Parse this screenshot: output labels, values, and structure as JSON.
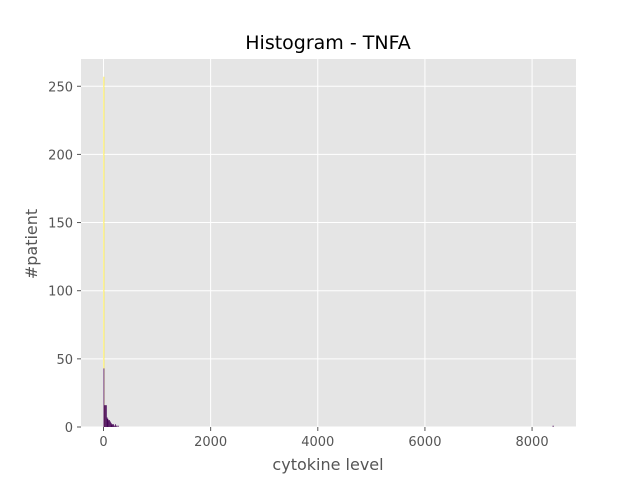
{
  "chart_data": {
    "type": "bar",
    "title": "Histogram - TNFA",
    "xlabel": "cytokine level",
    "ylabel": "#patient",
    "xlim": [
      -420,
      8820
    ],
    "ylim": [
      0,
      270
    ],
    "x_ticks": [
      0,
      2000,
      4000,
      6000,
      8000
    ],
    "y_ticks": [
      0,
      50,
      100,
      150,
      200,
      250
    ],
    "x_tick_labels": [
      "0",
      "2000",
      "4000",
      "6000",
      "8000"
    ],
    "y_tick_labels": [
      "0",
      "50",
      "100",
      "150",
      "200",
      "250"
    ],
    "grid": true,
    "background": "#e5e5e5",
    "grid_color": "#ffffff",
    "series": [
      {
        "color": "#fde725",
        "bins": [
          {
            "x0": 0,
            "x1": 15,
            "count": 257
          }
        ]
      },
      {
        "color": "#440154",
        "bins": [
          {
            "x0": 0,
            "x1": 15,
            "count": 43
          },
          {
            "x0": 15,
            "x1": 30,
            "count": 16
          },
          {
            "x0": 30,
            "x1": 45,
            "count": 16
          },
          {
            "x0": 45,
            "x1": 60,
            "count": 16
          },
          {
            "x0": 60,
            "x1": 75,
            "count": 7
          },
          {
            "x0": 75,
            "x1": 90,
            "count": 6
          },
          {
            "x0": 90,
            "x1": 105,
            "count": 5
          },
          {
            "x0": 105,
            "x1": 120,
            "count": 5
          },
          {
            "x0": 120,
            "x1": 135,
            "count": 4
          },
          {
            "x0": 135,
            "x1": 150,
            "count": 3
          },
          {
            "x0": 150,
            "x1": 165,
            "count": 2
          },
          {
            "x0": 165,
            "x1": 180,
            "count": 2
          },
          {
            "x0": 180,
            "x1": 195,
            "count": 2
          },
          {
            "x0": 195,
            "x1": 210,
            "count": 1
          },
          {
            "x0": 215,
            "x1": 230,
            "count": 2
          },
          {
            "x0": 240,
            "x1": 255,
            "count": 1
          },
          {
            "x0": 265,
            "x1": 280,
            "count": 1
          },
          {
            "x0": 8385,
            "x1": 8400,
            "count": 1
          }
        ]
      }
    ]
  }
}
